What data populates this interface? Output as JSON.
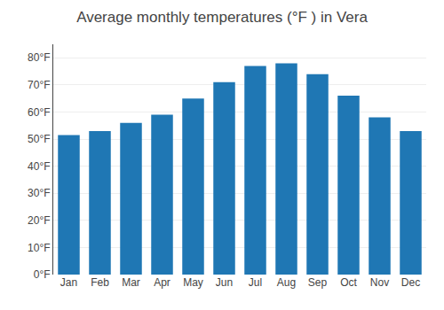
{
  "chart_data": {
    "type": "bar",
    "title": "Average monthly temperatures (°F ) in Vera",
    "categories": [
      "Jan",
      "Feb",
      "Mar",
      "Apr",
      "May",
      "Jun",
      "Jul",
      "Aug",
      "Sep",
      "Oct",
      "Nov",
      "Dec"
    ],
    "values": [
      51.5,
      53.0,
      56.0,
      59.0,
      65.0,
      71.0,
      77.0,
      78.0,
      74.0,
      66.0,
      58.0,
      53.0
    ],
    "ylim": [
      0,
      85
    ],
    "yticks": [
      {
        "value": 0,
        "label": "0°F"
      },
      {
        "value": 10,
        "label": "10°F"
      },
      {
        "value": 20,
        "label": "20°F"
      },
      {
        "value": 30,
        "label": "30°F"
      },
      {
        "value": 40,
        "label": "40°F"
      },
      {
        "value": 50,
        "label": "50°F"
      },
      {
        "value": 60,
        "label": "60°F"
      },
      {
        "value": 70,
        "label": "70°F"
      },
      {
        "value": 80,
        "label": "80°F"
      }
    ],
    "grid": true
  }
}
